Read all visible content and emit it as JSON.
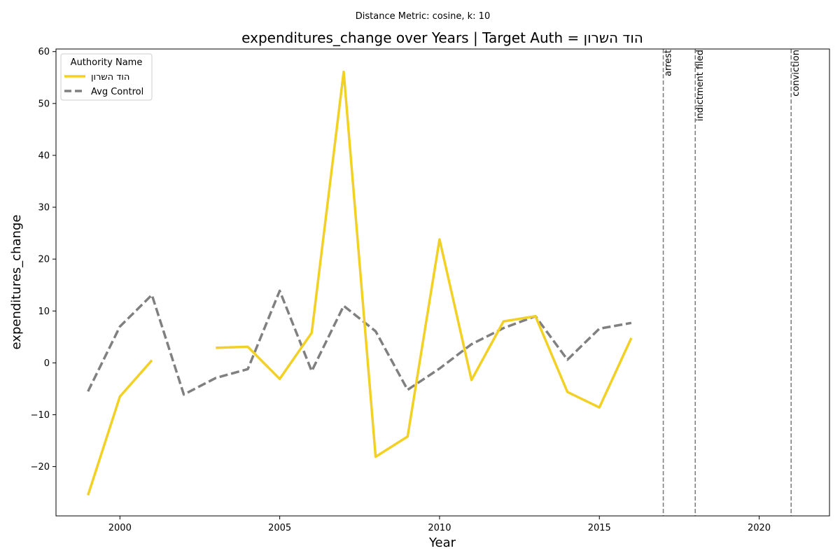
{
  "suptitle": "Distance Metric: cosine, k: 10",
  "chart_data": {
    "type": "line",
    "title": "expenditures_change over Years | Target Auth = הוד השרון",
    "xlabel": "Year",
    "ylabel": "expenditures_change",
    "xlim": [
      1998,
      2022.2
    ],
    "ylim": [
      -29.5,
      60.5
    ],
    "xticks": [
      2000,
      2005,
      2010,
      2015,
      2020
    ],
    "yticks": [
      -20,
      -10,
      0,
      10,
      20,
      30,
      40,
      50,
      60
    ],
    "xtick_labels": [
      "2000",
      "2005",
      "2010",
      "2015",
      "2020"
    ],
    "ytick_labels": [
      "−20",
      "−10",
      "0",
      "10",
      "20",
      "30",
      "40",
      "50",
      "60"
    ],
    "legend": {
      "title": "Authority Name",
      "placement": "top-left"
    },
    "series": [
      {
        "name": "הוד השרון",
        "color": "#f2d024",
        "dashed": false,
        "x": [
          1999,
          2000,
          2001,
          2002,
          2003,
          2004,
          2005,
          2006,
          2007,
          2008,
          2009,
          2010,
          2011,
          2012,
          2013,
          2014,
          2015,
          2016
        ],
        "y": [
          -25.5,
          -6.5,
          0.5,
          null,
          2.9,
          3.1,
          -3.1,
          5.8,
          56.1,
          -18.1,
          -14.2,
          23.8,
          -3.3,
          8.0,
          9.0,
          -5.6,
          -8.6,
          4.8
        ]
      },
      {
        "name": "Avg Control",
        "color": "#808080",
        "dashed": true,
        "x": [
          1999,
          2000,
          2001,
          2002,
          2003,
          2004,
          2005,
          2006,
          2007,
          2008,
          2009,
          2010,
          2011,
          2012,
          2013,
          2014,
          2015,
          2016
        ],
        "y": [
          -5.5,
          7.0,
          13.1,
          -6.1,
          -2.9,
          -1.2,
          13.9,
          -1.6,
          11.0,
          6.1,
          -5.2,
          -1.1,
          3.6,
          6.7,
          9.0,
          0.6,
          6.6,
          7.7
        ]
      }
    ],
    "events": [
      {
        "label": "arrest",
        "x": 2017
      },
      {
        "label": "indictment filed",
        "x": 2018
      },
      {
        "label": "conviction",
        "x": 2021
      }
    ]
  }
}
